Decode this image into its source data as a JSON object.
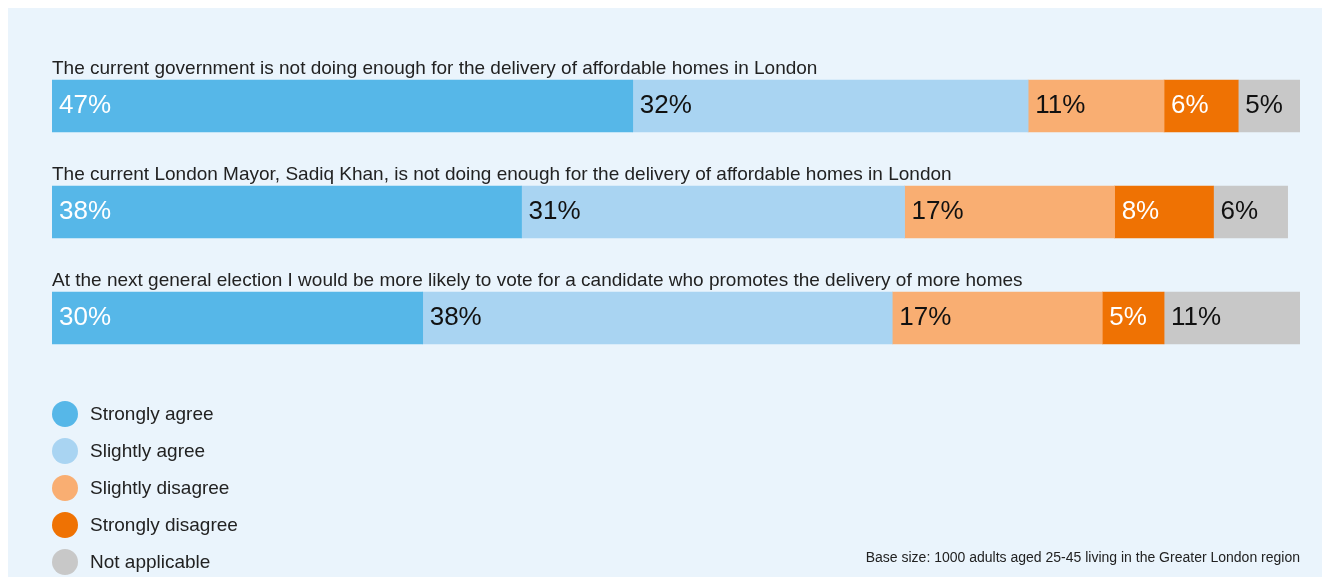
{
  "chart_data": {
    "type": "bar",
    "orientation": "horizontal",
    "stacked": true,
    "legend": "bottom left",
    "tick_labels": false,
    "categories": [
      "The current government is not doing enough for the delivery of affordable homes in London",
      "The current London Mayor, Sadiq Khan, is not doing enough for the delivery of affordable homes in London",
      "At the next general election I would be more likely to vote for a candidate who promotes the delivery of more homes"
    ],
    "series": [
      {
        "name": "Strongly agree",
        "color": "#56b7e8",
        "values": [
          47,
          38,
          30
        ],
        "value_labels": [
          "47%",
          "38%",
          "30%"
        ]
      },
      {
        "name": "Slightly agree",
        "color": "#a9d4f2",
        "values": [
          32,
          31,
          38
        ],
        "value_labels": [
          "32%",
          "31%",
          "38%"
        ]
      },
      {
        "name": "Slightly disagree",
        "color": "#f9ae72",
        "values": [
          11,
          17,
          17
        ],
        "value_labels": [
          "11%",
          "17%",
          "17%"
        ]
      },
      {
        "name": "Strongly disagree",
        "color": "#ef7203",
        "values": [
          6,
          8,
          5
        ],
        "value_labels": [
          "6%",
          "8%",
          "5%"
        ]
      },
      {
        "name": "Not applicable",
        "color": "#c8c8c8",
        "values": [
          5,
          6,
          11
        ],
        "value_labels": [
          "5%",
          "6%",
          "11%"
        ]
      }
    ],
    "annotations": [
      "Base size: 1000 adults aged 25-45 living in the Greater London region"
    ]
  }
}
